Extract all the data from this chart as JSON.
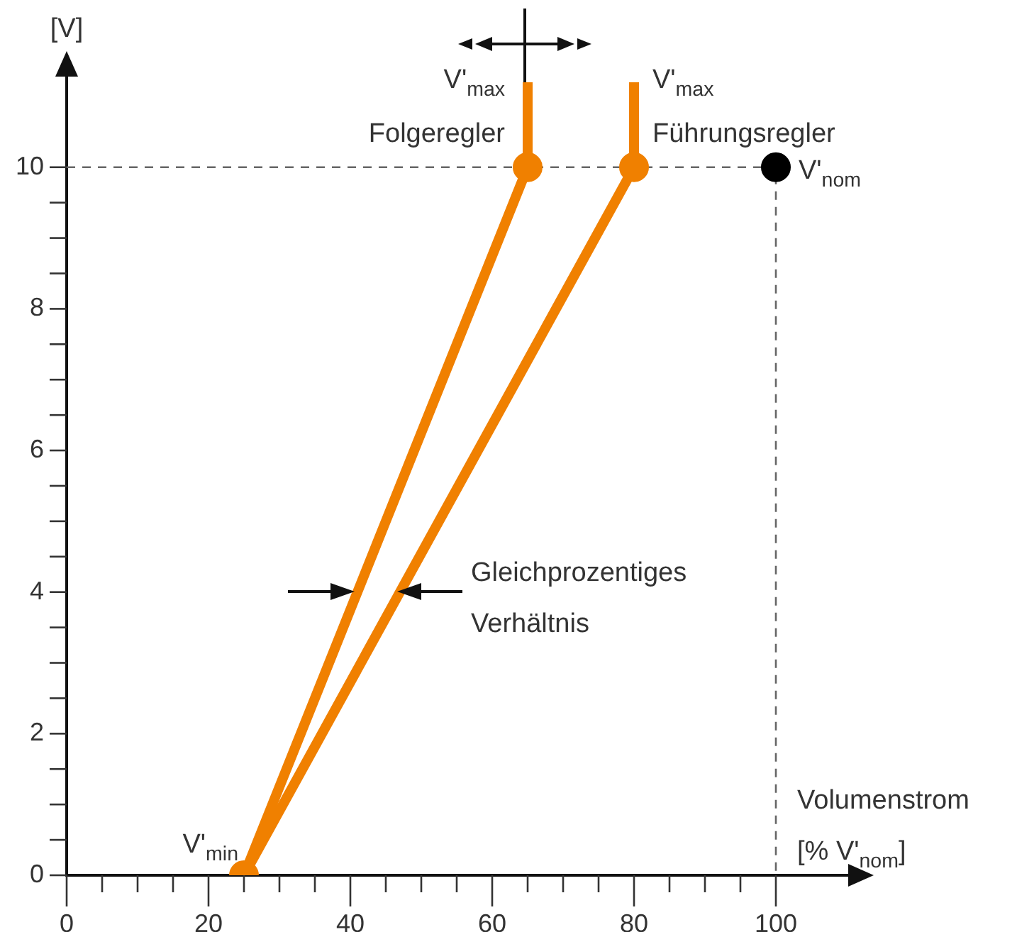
{
  "chart_data": {
    "type": "line",
    "xlabel": "Volumenstrom\n[% V'$_{nom}$]",
    "ylabel": "[V]",
    "xlim": [
      0,
      113
    ],
    "ylim": [
      0,
      11.3
    ],
    "xticks": [
      0,
      {
        "value": 5,
        "label": null
      },
      {
        "value": 10,
        "label": null
      },
      {
        "value": 15,
        "label": null
      },
      20,
      {
        "value": 25,
        "label": null
      },
      {
        "value": 30,
        "label": null
      },
      {
        "value": 35,
        "label": null
      },
      40,
      {
        "value": 45,
        "label": null
      },
      {
        "value": 50,
        "label": null
      },
      {
        "value": 55,
        "label": null
      },
      60,
      {
        "value": 65,
        "label": null
      },
      {
        "value": 70,
        "label": null
      },
      {
        "value": 75,
        "label": null
      },
      80,
      {
        "value": 85,
        "label": null
      },
      {
        "value": 90,
        "label": null
      },
      {
        "value": 95,
        "label": null
      },
      100
    ],
    "yticks": [
      0,
      {
        "value": 0.5,
        "label": null
      },
      {
        "value": 1,
        "label": null
      },
      {
        "value": 1.5,
        "label": null
      },
      2,
      {
        "value": 2.5,
        "label": null
      },
      {
        "value": 3,
        "label": null
      },
      {
        "value": 3.5,
        "label": null
      },
      4,
      {
        "value": 4.5,
        "label": null
      },
      {
        "value": 5,
        "label": null
      },
      {
        "value": 5.5,
        "label": null
      },
      6,
      {
        "value": 6.5,
        "label": null
      },
      {
        "value": 7,
        "label": null
      },
      {
        "value": 7.5,
        "label": null
      },
      8,
      {
        "value": 8.5,
        "label": null
      },
      {
        "value": 9,
        "label": null
      },
      {
        "value": 9.5,
        "label": null
      },
      10
    ],
    "grid": false,
    "legend": false,
    "series": [
      {
        "color": "#666666",
        "line_style": "dashed",
        "marker": "none",
        "x": [
          0,
          100,
          100
        ],
        "values": [
          10,
          10,
          0
        ]
      },
      {
        "color": "#f08000",
        "line_style": "solid",
        "marker": "none",
        "x": [
          25,
          65,
          65
        ],
        "values": [
          0,
          10,
          11.2
        ]
      },
      {
        "color": "#f08000",
        "line_style": "solid",
        "marker": "none",
        "x": [
          25,
          80,
          80
        ],
        "values": [
          0,
          10,
          11.2
        ]
      },
      {
        "type": "scatter",
        "color": "#f08000",
        "marker": "circle",
        "x": [
          25,
          65,
          80
        ],
        "values": [
          0,
          10,
          10
        ]
      },
      {
        "type": "scatter",
        "color": "#000000",
        "marker": "circle",
        "x": [
          100
        ],
        "values": [
          10
        ]
      }
    ],
    "annotations": [
      {
        "text": "V'$_{min}$",
        "x": 25,
        "y": 0
      },
      {
        "text": "V'$_{max}$\nFolgeregler",
        "x": 65,
        "y": 11.2
      },
      {
        "text": "V'$_{max}$\nFührungsregler",
        "x": 80,
        "y": 11.2
      },
      {
        "text": "V'$_{nom}$",
        "x": 100,
        "y": 10
      },
      "Gleichprozentiges\nVerhältnis"
    ]
  }
}
